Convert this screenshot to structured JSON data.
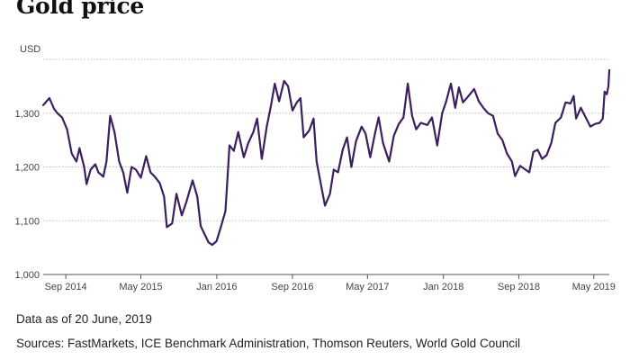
{
  "title": "Gold price",
  "footer": {
    "as_of": "Data as of 20 June, 2019",
    "sources": "Sources: FastMarkets, ICE Benchmark Administration, Thomson Reuters, World Gold Council"
  },
  "colors": {
    "line": "#3b1f5e",
    "grid": "#bdbdbd",
    "axis": "#555555"
  },
  "chart_data": {
    "type": "line",
    "title": "Gold price",
    "xlabel": "",
    "ylabel": "USD",
    "unit_label": "USD",
    "ylim": [
      1000,
      1400
    ],
    "xlim": [
      "2014-06-20",
      "2019-06-20"
    ],
    "grid": "horizontal dotted",
    "yticks": [
      {
        "value": 1000,
        "label": "1,000"
      },
      {
        "value": 1100,
        "label": "1,100"
      },
      {
        "value": 1200,
        "label": "1,200"
      },
      {
        "value": 1300,
        "label": "1,300"
      }
    ],
    "xticks": [
      {
        "date": "2014-09-01",
        "label": "Sep 2014"
      },
      {
        "date": "2015-05-01",
        "label": "May 2015"
      },
      {
        "date": "2016-01-01",
        "label": "Jan 2016"
      },
      {
        "date": "2016-09-01",
        "label": "Sep 2016"
      },
      {
        "date": "2017-05-01",
        "label": "May 2017"
      },
      {
        "date": "2018-01-01",
        "label": "Jan 2018"
      },
      {
        "date": "2018-09-01",
        "label": "Sep 2018"
      },
      {
        "date": "2019-05-01",
        "label": "May 2019"
      }
    ],
    "series": [
      {
        "points": [
          [
            "2014-06-20",
            1315
          ],
          [
            "2014-07-10",
            1328
          ],
          [
            "2014-07-25",
            1308
          ],
          [
            "2014-08-05",
            1300
          ],
          [
            "2014-08-20",
            1292
          ],
          [
            "2014-09-05",
            1270
          ],
          [
            "2014-09-20",
            1225
          ],
          [
            "2014-10-05",
            1210
          ],
          [
            "2014-10-15",
            1235
          ],
          [
            "2014-10-30",
            1200
          ],
          [
            "2014-11-07",
            1168
          ],
          [
            "2014-11-20",
            1195
          ],
          [
            "2014-12-05",
            1205
          ],
          [
            "2014-12-15",
            1190
          ],
          [
            "2014-12-31",
            1182
          ],
          [
            "2015-01-10",
            1210
          ],
          [
            "2015-01-22",
            1295
          ],
          [
            "2015-02-05",
            1265
          ],
          [
            "2015-02-20",
            1210
          ],
          [
            "2015-03-05",
            1190
          ],
          [
            "2015-03-18",
            1152
          ],
          [
            "2015-04-01",
            1200
          ],
          [
            "2015-04-15",
            1195
          ],
          [
            "2015-05-01",
            1180
          ],
          [
            "2015-05-18",
            1220
          ],
          [
            "2015-06-01",
            1190
          ],
          [
            "2015-06-15",
            1182
          ],
          [
            "2015-07-01",
            1170
          ],
          [
            "2015-07-15",
            1145
          ],
          [
            "2015-07-24",
            1088
          ],
          [
            "2015-08-10",
            1095
          ],
          [
            "2015-08-24",
            1150
          ],
          [
            "2015-09-10",
            1110
          ],
          [
            "2015-09-25",
            1135
          ],
          [
            "2015-10-15",
            1175
          ],
          [
            "2015-10-30",
            1145
          ],
          [
            "2015-11-10",
            1090
          ],
          [
            "2015-11-25",
            1072
          ],
          [
            "2015-12-05",
            1060
          ],
          [
            "2015-12-17",
            1055
          ],
          [
            "2015-12-31",
            1062
          ],
          [
            "2016-01-15",
            1090
          ],
          [
            "2016-01-29",
            1118
          ],
          [
            "2016-02-11",
            1240
          ],
          [
            "2016-02-25",
            1230
          ],
          [
            "2016-03-10",
            1265
          ],
          [
            "2016-03-28",
            1218
          ],
          [
            "2016-04-12",
            1245
          ],
          [
            "2016-04-28",
            1265
          ],
          [
            "2016-05-10",
            1290
          ],
          [
            "2016-05-25",
            1215
          ],
          [
            "2016-06-10",
            1275
          ],
          [
            "2016-06-24",
            1315
          ],
          [
            "2016-07-06",
            1355
          ],
          [
            "2016-07-20",
            1322
          ],
          [
            "2016-08-05",
            1360
          ],
          [
            "2016-08-18",
            1350
          ],
          [
            "2016-09-01",
            1305
          ],
          [
            "2016-09-15",
            1320
          ],
          [
            "2016-09-27",
            1328
          ],
          [
            "2016-10-07",
            1255
          ],
          [
            "2016-10-25",
            1268
          ],
          [
            "2016-11-08",
            1290
          ],
          [
            "2016-11-18",
            1210
          ],
          [
            "2016-12-01",
            1170
          ],
          [
            "2016-12-15",
            1128
          ],
          [
            "2016-12-31",
            1150
          ],
          [
            "2017-01-12",
            1195
          ],
          [
            "2017-01-26",
            1190
          ],
          [
            "2017-02-10",
            1232
          ],
          [
            "2017-02-24",
            1255
          ],
          [
            "2017-03-10",
            1200
          ],
          [
            "2017-03-25",
            1248
          ],
          [
            "2017-04-12",
            1275
          ],
          [
            "2017-04-25",
            1262
          ],
          [
            "2017-05-10",
            1218
          ],
          [
            "2017-05-25",
            1262
          ],
          [
            "2017-06-06",
            1292
          ],
          [
            "2017-06-20",
            1245
          ],
          [
            "2017-07-10",
            1210
          ],
          [
            "2017-07-25",
            1258
          ],
          [
            "2017-08-10",
            1280
          ],
          [
            "2017-08-25",
            1292
          ],
          [
            "2017-09-08",
            1355
          ],
          [
            "2017-09-22",
            1295
          ],
          [
            "2017-10-05",
            1270
          ],
          [
            "2017-10-20",
            1282
          ],
          [
            "2017-11-10",
            1278
          ],
          [
            "2017-11-25",
            1292
          ],
          [
            "2017-12-12",
            1240
          ],
          [
            "2017-12-28",
            1300
          ],
          [
            "2018-01-10",
            1322
          ],
          [
            "2018-01-25",
            1355
          ],
          [
            "2018-02-08",
            1310
          ],
          [
            "2018-02-20",
            1348
          ],
          [
            "2018-03-05",
            1320
          ],
          [
            "2018-03-20",
            1330
          ],
          [
            "2018-04-10",
            1345
          ],
          [
            "2018-04-25",
            1322
          ],
          [
            "2018-05-10",
            1310
          ],
          [
            "2018-05-25",
            1300
          ],
          [
            "2018-06-10",
            1295
          ],
          [
            "2018-06-25",
            1262
          ],
          [
            "2018-07-10",
            1250
          ],
          [
            "2018-07-25",
            1225
          ],
          [
            "2018-08-10",
            1210
          ],
          [
            "2018-08-20",
            1183
          ],
          [
            "2018-09-05",
            1202
          ],
          [
            "2018-09-20",
            1196
          ],
          [
            "2018-10-05",
            1190
          ],
          [
            "2018-10-18",
            1228
          ],
          [
            "2018-11-01",
            1232
          ],
          [
            "2018-11-15",
            1215
          ],
          [
            "2018-11-30",
            1222
          ],
          [
            "2018-12-15",
            1245
          ],
          [
            "2018-12-28",
            1282
          ],
          [
            "2019-01-15",
            1292
          ],
          [
            "2019-01-30",
            1320
          ],
          [
            "2019-02-15",
            1318
          ],
          [
            "2019-02-25",
            1332
          ],
          [
            "2019-03-05",
            1290
          ],
          [
            "2019-03-20",
            1310
          ],
          [
            "2019-04-05",
            1292
          ],
          [
            "2019-04-20",
            1275
          ],
          [
            "2019-05-05",
            1280
          ],
          [
            "2019-05-20",
            1282
          ],
          [
            "2019-05-30",
            1290
          ],
          [
            "2019-06-05",
            1340
          ],
          [
            "2019-06-12",
            1335
          ],
          [
            "2019-06-17",
            1350
          ],
          [
            "2019-06-20",
            1380
          ]
        ]
      }
    ]
  }
}
